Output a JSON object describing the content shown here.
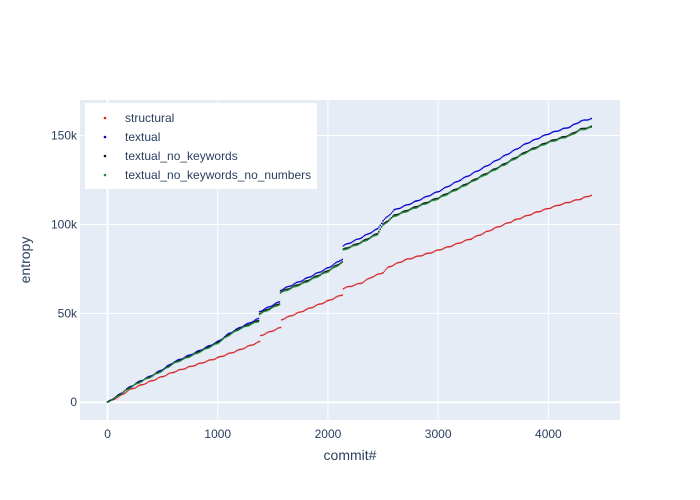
{
  "chart_data": {
    "type": "scatter",
    "xlabel": "commit#",
    "ylabel": "entropy",
    "xlim": [
      -250,
      4650
    ],
    "ylim": [
      -10000,
      170000
    ],
    "xticks": [
      0,
      1000,
      2000,
      3000,
      4000
    ],
    "xtick_labels": [
      "0",
      "1000",
      "2000",
      "3000",
      "4000"
    ],
    "yticks": [
      0,
      50000,
      100000,
      150000
    ],
    "ytick_labels": [
      "0",
      "50k",
      "100k",
      "150k"
    ],
    "grid": true,
    "legend_position": "top-left",
    "plot_bgcolor": "#e5ecf6",
    "series": [
      {
        "name": "structural",
        "color": "#d62728",
        "points": [
          [
            0,
            0
          ],
          [
            100,
            3000
          ],
          [
            200,
            7000
          ],
          [
            300,
            9500
          ],
          [
            400,
            12000
          ],
          [
            500,
            14500
          ],
          [
            600,
            17000
          ],
          [
            800,
            21000
          ],
          [
            1000,
            25000
          ],
          [
            1200,
            29500
          ],
          [
            1380,
            34000
          ],
          [
            1390,
            37500
          ],
          [
            1570,
            42000
          ],
          [
            1580,
            46500
          ],
          [
            1800,
            52000
          ],
          [
            2000,
            57000
          ],
          [
            2130,
            60500
          ],
          [
            2140,
            64000
          ],
          [
            2300,
            67000
          ],
          [
            2400,
            70500
          ],
          [
            2500,
            73000
          ],
          [
            2550,
            76000
          ],
          [
            2700,
            80000
          ],
          [
            2900,
            83500
          ],
          [
            3100,
            87500
          ],
          [
            3300,
            92000
          ],
          [
            3500,
            97500
          ],
          [
            3700,
            102500
          ],
          [
            3900,
            107000
          ],
          [
            4100,
            111000
          ],
          [
            4300,
            114500
          ],
          [
            4390,
            116500
          ]
        ]
      },
      {
        "name": "textual",
        "color": "#0000cc",
        "points": [
          [
            0,
            0
          ],
          [
            100,
            4000
          ],
          [
            200,
            8500
          ],
          [
            300,
            12000
          ],
          [
            400,
            15000
          ],
          [
            500,
            18500
          ],
          [
            600,
            22500
          ],
          [
            800,
            28000
          ],
          [
            1000,
            34000
          ],
          [
            1100,
            38500
          ],
          [
            1200,
            42000
          ],
          [
            1370,
            47000
          ],
          [
            1380,
            51000
          ],
          [
            1560,
            56500
          ],
          [
            1570,
            63000
          ],
          [
            1800,
            69500
          ],
          [
            2000,
            75500
          ],
          [
            2130,
            80500
          ],
          [
            2140,
            88000
          ],
          [
            2300,
            92500
          ],
          [
            2450,
            97500
          ],
          [
            2500,
            102000
          ],
          [
            2600,
            108000
          ],
          [
            2800,
            113000
          ],
          [
            3000,
            118500
          ],
          [
            3200,
            125000
          ],
          [
            3400,
            131500
          ],
          [
            3600,
            138500
          ],
          [
            3800,
            145500
          ],
          [
            4000,
            151000
          ],
          [
            4200,
            155000
          ],
          [
            4290,
            158000
          ],
          [
            4390,
            159500
          ]
        ]
      },
      {
        "name": "textual_no_keywords",
        "color": "#111111",
        "points": [
          [
            0,
            0
          ],
          [
            100,
            3800
          ],
          [
            200,
            8200
          ],
          [
            300,
            11700
          ],
          [
            400,
            14700
          ],
          [
            500,
            18000
          ],
          [
            600,
            22000
          ],
          [
            800,
            27500
          ],
          [
            1000,
            33500
          ],
          [
            1100,
            38000
          ],
          [
            1200,
            41500
          ],
          [
            1370,
            46000
          ],
          [
            1380,
            50000
          ],
          [
            1560,
            55500
          ],
          [
            1570,
            62000
          ],
          [
            1800,
            68000
          ],
          [
            2000,
            74000
          ],
          [
            2130,
            79000
          ],
          [
            2140,
            86000
          ],
          [
            2300,
            90000
          ],
          [
            2450,
            95000
          ],
          [
            2500,
            100000
          ],
          [
            2600,
            105000
          ],
          [
            2800,
            110000
          ],
          [
            3000,
            115000
          ],
          [
            3200,
            121000
          ],
          [
            3400,
            127500
          ],
          [
            3600,
            134000
          ],
          [
            3800,
            141000
          ],
          [
            4000,
            146500
          ],
          [
            4200,
            150500
          ],
          [
            4290,
            153500
          ],
          [
            4390,
            155000
          ]
        ]
      },
      {
        "name": "textual_no_keywords_no_numbers",
        "color": "#1f8a3a",
        "points": [
          [
            0,
            0
          ],
          [
            100,
            3600
          ],
          [
            200,
            8000
          ],
          [
            300,
            11500
          ],
          [
            400,
            14500
          ],
          [
            500,
            17800
          ],
          [
            600,
            21800
          ],
          [
            800,
            27200
          ],
          [
            1000,
            33200
          ],
          [
            1100,
            37700
          ],
          [
            1200,
            41200
          ],
          [
            1370,
            45500
          ],
          [
            1380,
            49500
          ],
          [
            1560,
            55000
          ],
          [
            1570,
            61500
          ],
          [
            1800,
            67500
          ],
          [
            2000,
            73500
          ],
          [
            2130,
            78500
          ],
          [
            2140,
            85500
          ],
          [
            2300,
            89500
          ],
          [
            2450,
            94500
          ],
          [
            2500,
            99500
          ],
          [
            2600,
            104500
          ],
          [
            2800,
            109500
          ],
          [
            3000,
            114500
          ],
          [
            3200,
            120500
          ],
          [
            3400,
            127000
          ],
          [
            3600,
            133500
          ],
          [
            3800,
            140500
          ],
          [
            4000,
            146000
          ],
          [
            4200,
            150000
          ],
          [
            4290,
            153000
          ],
          [
            4390,
            154500
          ]
        ]
      }
    ]
  }
}
